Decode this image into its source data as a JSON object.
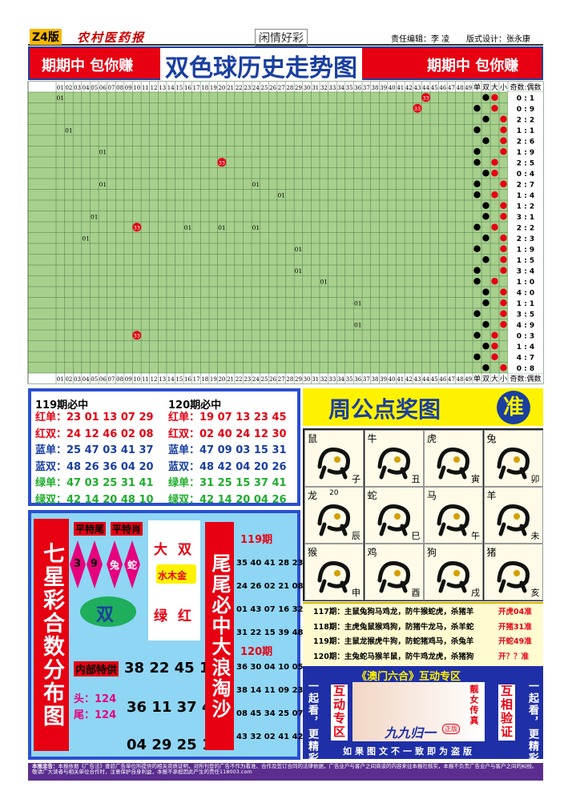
{
  "header": {
    "section": "Z4版",
    "paper": "农村医药报",
    "column": "闲情好彩",
    "editor": "责任编辑：李 凌",
    "designer": "版式设计：张永康"
  },
  "banner": {
    "left": "期期中 包你赚",
    "title": "双色球历史走势图",
    "right": "期期中 包你赚"
  },
  "trend": {
    "columns": [
      "01",
      "02",
      "03",
      "04",
      "05",
      "06",
      "07",
      "08",
      "09",
      "10",
      "11",
      "12",
      "13",
      "14",
      "15",
      "16",
      "17",
      "18",
      "19",
      "20",
      "21",
      "22",
      "23",
      "24",
      "25",
      "26",
      "27",
      "28",
      "29",
      "30",
      "31",
      "32",
      "33",
      "34",
      "35",
      "36",
      "37",
      "38",
      "39",
      "40",
      "41",
      "42",
      "43",
      "44",
      "45",
      "46",
      "47",
      "48",
      "49"
    ],
    "flags": [
      "单",
      "双",
      "大",
      "小"
    ],
    "ratio_header": "奇数:偶数",
    "rows": [
      {
        "ratio": "0 : 1",
        "numbers": {
          "01": "01"
        },
        "balls": {
          "44": "33"
        }
      },
      {
        "ratio": "0 : 9",
        "numbers": {},
        "balls": {
          "43": "33"
        }
      },
      {
        "ratio": "2 : 2",
        "numbers": {},
        "balls": {}
      },
      {
        "ratio": "1 : 1",
        "numbers": {
          "02": "01"
        },
        "balls": {}
      },
      {
        "ratio": "2 : 6",
        "numbers": {},
        "balls": {}
      },
      {
        "ratio": "1 : 9",
        "numbers": {
          "06": "01"
        },
        "balls": {}
      },
      {
        "ratio": "2 : 5",
        "numbers": {},
        "balls": {
          "20": "33"
        }
      },
      {
        "ratio": "0 : 4",
        "numbers": {},
        "balls": {}
      },
      {
        "ratio": "2 : 7",
        "numbers": {
          "06": "01",
          "24": "01"
        },
        "balls": {}
      },
      {
        "ratio": "1 : 4",
        "numbers": {
          "27": "01"
        },
        "balls": {}
      },
      {
        "ratio": "1 : 2",
        "numbers": {},
        "balls": {}
      },
      {
        "ratio": "3 : 1",
        "numbers": {
          "05": "01"
        },
        "balls": {}
      },
      {
        "ratio": "2 : 2",
        "numbers": {
          "16": "01",
          "20": "01",
          "24": "01"
        },
        "balls": {
          "10": "33"
        }
      },
      {
        "ratio": "2 : 3",
        "numbers": {
          "04": "01"
        },
        "balls": {}
      },
      {
        "ratio": "1 : 9",
        "numbers": {
          "29": "01"
        },
        "balls": {}
      },
      {
        "ratio": "1 : 5",
        "numbers": {},
        "balls": {}
      },
      {
        "ratio": "3 : 4",
        "numbers": {
          "29": "01"
        },
        "balls": {}
      },
      {
        "ratio": "1 : 0",
        "numbers": {
          "32": "01"
        },
        "balls": {}
      },
      {
        "ratio": "4 : 0",
        "numbers": {},
        "balls": {}
      },
      {
        "ratio": "1 : 1",
        "numbers": {
          "36": "01"
        },
        "balls": {}
      },
      {
        "ratio": "3 : 5",
        "numbers": {},
        "balls": {}
      },
      {
        "ratio": "4 : 9",
        "numbers": {
          "36": "01"
        },
        "balls": {}
      },
      {
        "ratio": "0 : 3",
        "numbers": {},
        "balls": {
          "10": "33"
        }
      },
      {
        "ratio": "1 : 4",
        "numbers": {},
        "balls": {}
      },
      {
        "ratio": "4 : 7",
        "numbers": {},
        "balls": {}
      },
      {
        "ratio": "0 : 8",
        "numbers": {},
        "balls": {}
      }
    ]
  },
  "picks": [
    {
      "title": "119期必中",
      "lines": [
        {
          "label": "红单：",
          "nums": "23 01 13 07 29"
        },
        {
          "label": "红双：",
          "nums": "24 12 46 02 08"
        },
        {
          "label": "蓝单：",
          "nums": "25 47 03 41 37"
        },
        {
          "label": "蓝双：",
          "nums": "48 26 36 04 20"
        },
        {
          "label": "绿单：",
          "nums": "47 03 25 31 41"
        },
        {
          "label": "绿双：",
          "nums": "42 14 20 48 10"
        }
      ]
    },
    {
      "title": "120期必中",
      "lines": [
        {
          "label": "红单：",
          "nums": "19 07 13 23 45"
        },
        {
          "label": "红双：",
          "nums": "02 40 24 12 30"
        },
        {
          "label": "蓝单：",
          "nums": "47 09 03 15 31"
        },
        {
          "label": "蓝双：",
          "nums": "48 42 04 20 26"
        },
        {
          "label": "绿单：",
          "nums": "31 25 15 37 41"
        },
        {
          "label": "绿双：",
          "nums": "42 14 20 04 26"
        }
      ]
    }
  ],
  "zodiac": {
    "title": "周公点奖图",
    "badge": "准",
    "cells": [
      {
        "animal": "鼠",
        "branch": "子"
      },
      {
        "animal": "牛",
        "branch": "丑"
      },
      {
        "animal": "虎",
        "branch": "寅"
      },
      {
        "animal": "兔",
        "branch": "卯"
      },
      {
        "animal": "龙",
        "branch": "辰",
        "note": "20"
      },
      {
        "animal": "蛇",
        "branch": "巳"
      },
      {
        "animal": "马",
        "branch": "午"
      },
      {
        "animal": "羊",
        "branch": "未"
      },
      {
        "animal": "猴",
        "branch": "申"
      },
      {
        "animal": "鸡",
        "branch": "酉"
      },
      {
        "animal": "狗",
        "branch": "戌"
      },
      {
        "animal": "猪",
        "branch": "亥"
      }
    ],
    "predictions": [
      {
        "text": "117期：主鼠兔狗马鸡龙，防牛猴蛇虎，杀猪羊",
        "result": "开虎04准"
      },
      {
        "text": "118期：主虎兔鼠猴鸡狗，防猪牛龙马，杀羊蛇",
        "result": "开猪31准"
      },
      {
        "text": "119期：主鼠龙猴虎牛狗，防蛇猪鸡马，杀兔羊",
        "result": "开蛇49准"
      },
      {
        "text": "120期：主兔蛇马猴羊鼠，防牛鸡龙虎，杀猪狗",
        "result": "开？？准"
      }
    ]
  },
  "macau": {
    "title": "《澳门六合》互动专区",
    "left_a": "一起看，更精彩！",
    "left_b": "互动专区",
    "right_a": "互相验证",
    "right_b": "一起看，更精彩！",
    "photo_title": "靓女传真",
    "photo_caption": "九九归一",
    "stamp": "正版",
    "footer": "如果图文不一致即为盗版"
  },
  "seven": {
    "title": "七星彩合数分布图",
    "tag1": "平特尾",
    "tag2": "平特肖",
    "tail1": "3",
    "tail2": "9",
    "z1": "兔",
    "z2": "蛇",
    "big": "大",
    "even": "双",
    "elements": "水木金",
    "green": "绿",
    "red": "红",
    "oval": "双",
    "inner": "内部特供",
    "nums1": "38 22 45 12",
    "head": "头：124",
    "tail": "尾：124",
    "nums2": "36 11 37 49",
    "nums3": "04 29 25 19",
    "side_title": "尾尾必中大浪淘沙",
    "p1": "119期",
    "l1": [
      "35 40 41 28 23",
      "24 26 02 21 08",
      "01 43 07 16 32",
      "31 22 15 39 48"
    ],
    "p2": "120期",
    "l2": [
      "36 30 04 10 05",
      "38 14 11 09 23",
      "08 45 34 25 07",
      "43 32 02 41 42"
    ]
  },
  "footer": {
    "label": "本报忠告：",
    "text": "本报依据《广告法》查验广告单位所提供的相关资质证明，对所刊登的广告不作为看准、合作及签订合同的法律依据，广告业户与客户之间商谈的内容来往本报社核实，本报不负责广告业户与客户之间的纠纷。敬请广大读者与相关单位合作时，注意保护自身利益，本报不承担因此产生的责任118003.com"
  }
}
